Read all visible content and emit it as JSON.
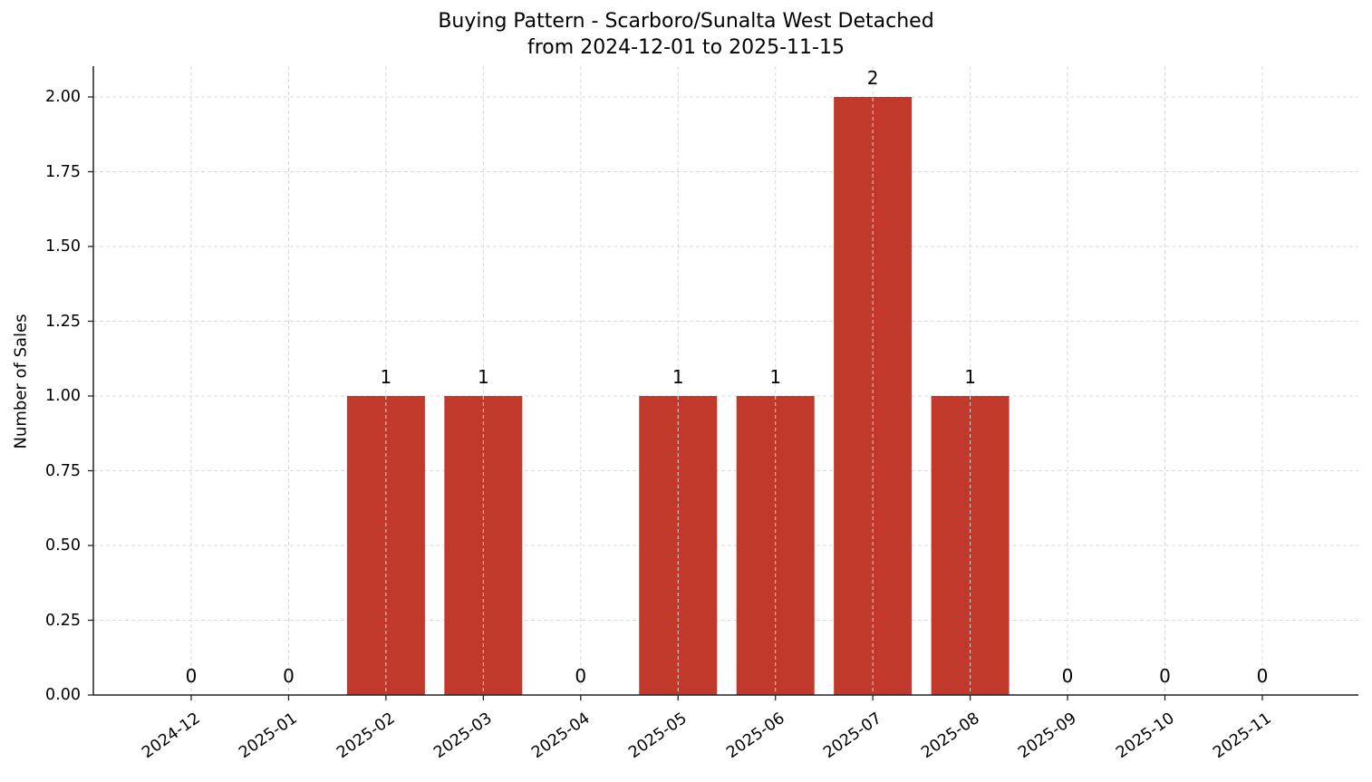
{
  "chart_data": {
    "type": "bar",
    "title": "Buying Pattern - Scarboro/Sunalta West Detached",
    "subtitle": "from 2024-12-01 to 2025-11-15",
    "xlabel": "",
    "ylabel": "Number of Sales",
    "categories": [
      "2024-12",
      "2025-01",
      "2025-02",
      "2025-03",
      "2025-04",
      "2025-05",
      "2025-06",
      "2025-07",
      "2025-08",
      "2025-09",
      "2025-10",
      "2025-11"
    ],
    "values": [
      0,
      0,
      1,
      1,
      0,
      1,
      1,
      2,
      1,
      0,
      0,
      0
    ],
    "data_labels": [
      "0",
      "0",
      "1",
      "1",
      "0",
      "1",
      "1",
      "2",
      "1",
      "0",
      "0",
      "0"
    ],
    "ylim": [
      0,
      2.1
    ],
    "yticks": [
      "0.00",
      "0.25",
      "0.50",
      "0.75",
      "1.00",
      "1.25",
      "1.50",
      "1.75",
      "2.00"
    ],
    "grid": true,
    "grid_style": "dashed",
    "legend": null,
    "bar_color": "#c0392b"
  }
}
